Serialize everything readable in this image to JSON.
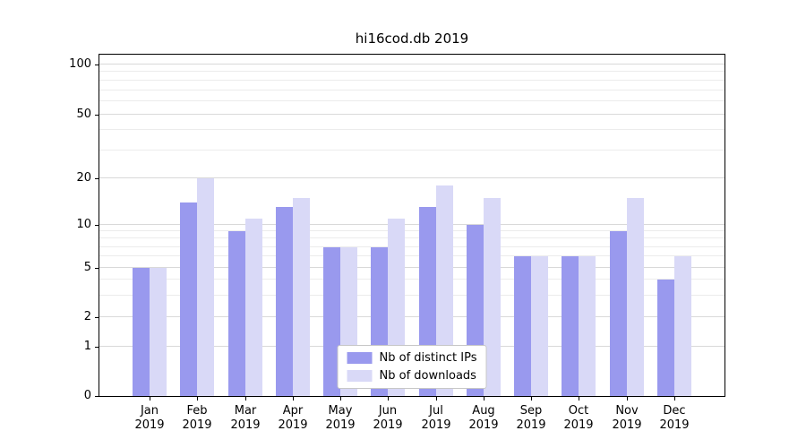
{
  "figure": {
    "background": "#ffffff"
  },
  "chart_data": {
    "type": "bar",
    "title": "hi16cod.db 2019",
    "xlabel": "",
    "ylabel": "",
    "categories": [
      "Jan 2019",
      "Feb 2019",
      "Mar 2019",
      "Apr 2019",
      "May 2019",
      "Jun 2019",
      "Jul 2019",
      "Aug 2019",
      "Sep 2019",
      "Oct 2019",
      "Nov 2019",
      "Dec 2019"
    ],
    "series": [
      {
        "name": "Nb of distinct IPs",
        "key": "distinct-ips",
        "color": "#9999ee",
        "values": [
          5,
          14,
          9,
          13,
          7,
          7,
          13,
          10,
          6,
          6,
          9,
          4
        ]
      },
      {
        "name": "Nb of downloads",
        "key": "downloads",
        "color": "#d9d9f7",
        "values": [
          5,
          20,
          11,
          15,
          7,
          11,
          18,
          15,
          6,
          6,
          15,
          6
        ]
      }
    ],
    "y_axis": {
      "scale": "symlog",
      "major_ticks": [
        0,
        1,
        2,
        5,
        10,
        20,
        50,
        100
      ],
      "minor_ticks": [
        3,
        4,
        6,
        7,
        8,
        9,
        30,
        40,
        60,
        70,
        80,
        90
      ],
      "range": [
        0,
        110
      ]
    },
    "grid": true,
    "legend_position": "lower center"
  },
  "colors": {
    "axis": "#000000",
    "grid_major": "#d9d9d9",
    "grid_minor": "#ececec",
    "legend_border": "#c7c7c7"
  }
}
